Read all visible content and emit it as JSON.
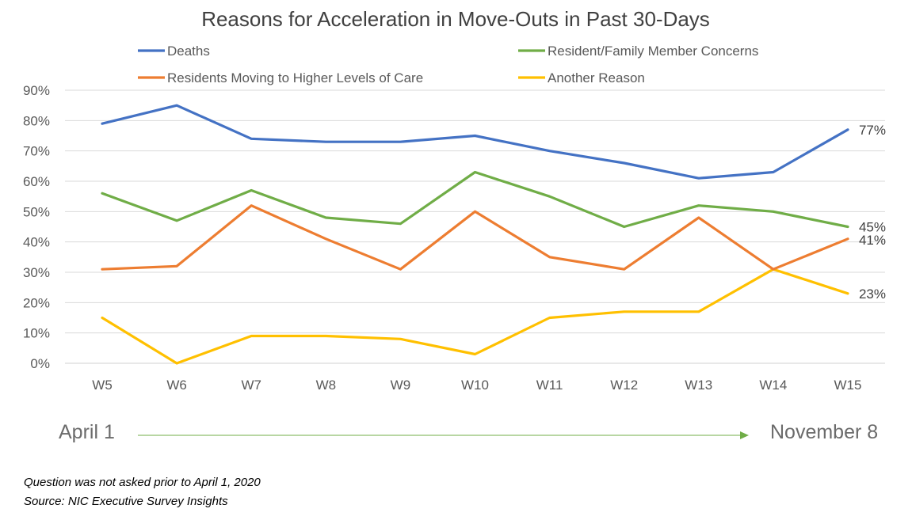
{
  "chart_data": {
    "type": "line",
    "title": "Reasons for Acceleration in Move-Outs in Past 30-Days",
    "categories": [
      "W5",
      "W6",
      "W7",
      "W8",
      "W9",
      "W10",
      "W11",
      "W12",
      "W13",
      "W14",
      "W15"
    ],
    "ylim": [
      0,
      90
    ],
    "yticks": [
      "0%",
      "10%",
      "20%",
      "30%",
      "40%",
      "50%",
      "60%",
      "70%",
      "80%",
      "90%"
    ],
    "grid": true,
    "legend_placement": "top",
    "series": [
      {
        "name": "Deaths",
        "color": "#4472C4",
        "values": [
          79,
          85,
          74,
          73,
          73,
          75,
          70,
          66,
          61,
          63,
          77
        ],
        "end_label": "77%"
      },
      {
        "name": "Resident/Family Member Concerns",
        "color": "#70AD47",
        "values": [
          56,
          47,
          57,
          48,
          46,
          63,
          55,
          45,
          52,
          50,
          45
        ],
        "end_label": "45%"
      },
      {
        "name": "Residents Moving to Higher Levels of Care",
        "color": "#ED7D31",
        "values": [
          31,
          32,
          52,
          41,
          31,
          50,
          35,
          31,
          48,
          31,
          41
        ],
        "end_label": "41%"
      },
      {
        "name": "Another Reason",
        "color": "#FFC000",
        "values": [
          15,
          0,
          9,
          9,
          8,
          3,
          15,
          17,
          17,
          31,
          23
        ],
        "end_label": "23%"
      }
    ]
  },
  "timeline": {
    "start": "April 1",
    "end": "November 8",
    "arrow_color": "#70AD47"
  },
  "footnotes": {
    "line1": "Question was not asked prior to April 1, 2020",
    "line2": "Source: NIC Executive Survey Insights"
  }
}
